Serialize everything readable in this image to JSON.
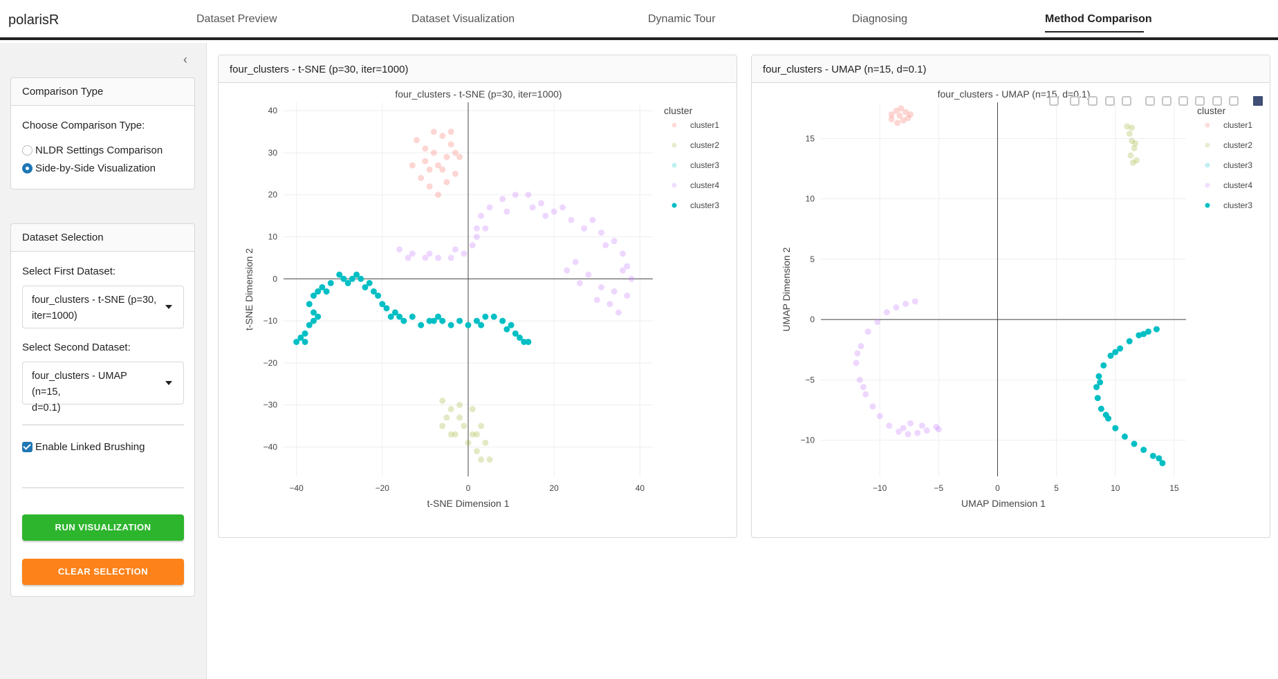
{
  "app": {
    "title": "polarisR"
  },
  "nav": {
    "tabs": [
      "Dataset Preview",
      "Dataset Visualization",
      "Dynamic Tour",
      "Diagnosing",
      "Method Comparison"
    ],
    "active": "Method Comparison"
  },
  "sidebar": {
    "comparison_card": {
      "title": "Comparison Type",
      "label": "Choose Comparison Type:",
      "options": [
        "NLDR Settings Comparison",
        "Side-by-Side Visualization"
      ],
      "selected": "Side-by-Side Visualization"
    },
    "dataset_card": {
      "title": "Dataset Selection",
      "first_label": "Select First Dataset:",
      "first_value_line1": "four_clusters - t-SNE (p=30,",
      "first_value_line2": "iter=1000)",
      "second_label": "Select Second Dataset:",
      "second_value_line1": "four_clusters - UMAP (n=15,",
      "second_value_line2": "d=0.1)",
      "linked_brushing_label": "Enable Linked Brushing",
      "linked_brushing_checked": true,
      "run_label": "RUN VISUALIZATION",
      "clear_label": "CLEAR SELECTION"
    }
  },
  "colors": {
    "cluster1": "#f8766d",
    "cluster2": "#a3b53a",
    "cluster3_faded": "#39c58c",
    "cluster4": "#c77cff",
    "cluster3": "#00bfc4",
    "run_button": "#2db52d",
    "clear_button": "#fd8219"
  },
  "chart_data": [
    {
      "type": "scatter",
      "panel_header": "four_clusters - t-SNE (p=30, iter=1000)",
      "title": "four_clusters - t-SNE (p=30, iter=1000)",
      "xlabel": "t-SNE Dimension 1",
      "ylabel": "t-SNE Dimension 2",
      "xlim": [
        -43,
        43
      ],
      "ylim": [
        -47,
        42
      ],
      "xticks": [
        -40,
        -20,
        0,
        20,
        40
      ],
      "yticks": [
        -40,
        -30,
        -20,
        -10,
        0,
        10,
        20,
        30,
        40
      ],
      "legend_title": "cluster",
      "legend": [
        "cluster1",
        "cluster2",
        "cluster3",
        "cluster4",
        "cluster3"
      ],
      "legend_opacity": [
        0.25,
        0.25,
        0.25,
        0.25,
        1
      ],
      "series": [
        {
          "name": "cluster1",
          "opacity": 0.3,
          "points": [
            [
              -12,
              33
            ],
            [
              -10,
              28
            ],
            [
              -8,
              30
            ],
            [
              -6,
              26
            ],
            [
              -4,
              32
            ],
            [
              -2,
              29
            ],
            [
              -11,
              24
            ],
            [
              -9,
              22
            ],
            [
              -7,
              27
            ],
            [
              -5,
              23
            ],
            [
              -3,
              25
            ],
            [
              -6,
              34
            ],
            [
              -8,
              35
            ],
            [
              -4,
              35
            ],
            [
              -13,
              27
            ],
            [
              -10,
              31
            ],
            [
              -7,
              20
            ],
            [
              -5,
              29
            ],
            [
              -3,
              30
            ],
            [
              -9,
              26
            ]
          ]
        },
        {
          "name": "cluster2",
          "opacity": 0.3,
          "points": [
            [
              -6,
              -29
            ],
            [
              -4,
              -31
            ],
            [
              -2,
              -33
            ],
            [
              -6,
              -35
            ],
            [
              -3,
              -37
            ],
            [
              -1,
              -35
            ],
            [
              0,
              -39
            ],
            [
              1,
              -37
            ],
            [
              2,
              -41
            ],
            [
              3,
              -43
            ],
            [
              4,
              -39
            ],
            [
              5,
              -43
            ],
            [
              -5,
              -33
            ],
            [
              -2,
              -30
            ],
            [
              1,
              -31
            ],
            [
              3,
              -35
            ],
            [
              -4,
              -37
            ],
            [
              2,
              -37
            ]
          ]
        },
        {
          "name": "cluster4",
          "opacity": 0.3,
          "points": [
            [
              -16,
              7
            ],
            [
              -13,
              6
            ],
            [
              -10,
              5
            ],
            [
              -7,
              5
            ],
            [
              -4,
              5
            ],
            [
              -1,
              6
            ],
            [
              1,
              8
            ],
            [
              2,
              12
            ],
            [
              3,
              15
            ],
            [
              5,
              17
            ],
            [
              8,
              19
            ],
            [
              11,
              20
            ],
            [
              14,
              20
            ],
            [
              17,
              18
            ],
            [
              20,
              16
            ],
            [
              24,
              14
            ],
            [
              27,
              12
            ],
            [
              31,
              11
            ],
            [
              34,
              9
            ],
            [
              36,
              6
            ],
            [
              37,
              3
            ],
            [
              38,
              0
            ],
            [
              37,
              -4
            ],
            [
              35,
              -8
            ],
            [
              33,
              -6
            ],
            [
              31,
              -2
            ],
            [
              28,
              1
            ],
            [
              25,
              4
            ],
            [
              23,
              2
            ],
            [
              26,
              -1
            ],
            [
              30,
              -5
            ],
            [
              34,
              -3
            ],
            [
              36,
              2
            ],
            [
              32,
              8
            ],
            [
              29,
              14
            ],
            [
              22,
              17
            ],
            [
              18,
              15
            ],
            [
              15,
              17
            ],
            [
              9,
              16
            ],
            [
              4,
              12
            ],
            [
              2,
              10
            ],
            [
              -3,
              7
            ],
            [
              -9,
              6
            ],
            [
              -14,
              5
            ]
          ]
        },
        {
          "name": "cluster3",
          "opacity": 1.0,
          "points": [
            [
              -40,
              -15
            ],
            [
              -39,
              -14
            ],
            [
              -38,
              -13
            ],
            [
              -37,
              -11
            ],
            [
              -36,
              -10
            ],
            [
              -36,
              -8
            ],
            [
              -37,
              -6
            ],
            [
              -36,
              -4
            ],
            [
              -35,
              -3
            ],
            [
              -34,
              -2
            ],
            [
              -32,
              -1
            ],
            [
              -30,
              1
            ],
            [
              -29,
              0
            ],
            [
              -28,
              -1
            ],
            [
              -27,
              0
            ],
            [
              -26,
              1
            ],
            [
              -25,
              0
            ],
            [
              -24,
              -2
            ],
            [
              -22,
              -3
            ],
            [
              -21,
              -4
            ],
            [
              -20,
              -6
            ],
            [
              -19,
              -7
            ],
            [
              -18,
              -9
            ],
            [
              -16,
              -9
            ],
            [
              -15,
              -10
            ],
            [
              -13,
              -9
            ],
            [
              -11,
              -11
            ],
            [
              -9,
              -10
            ],
            [
              -7,
              -9
            ],
            [
              -6,
              -10
            ],
            [
              -4,
              -11
            ],
            [
              -2,
              -10
            ],
            [
              0,
              -11
            ],
            [
              2,
              -10
            ],
            [
              4,
              -9
            ],
            [
              6,
              -9
            ],
            [
              8,
              -10
            ],
            [
              10,
              -11
            ],
            [
              11,
              -13
            ],
            [
              12,
              -14
            ],
            [
              13,
              -15
            ],
            [
              14,
              -15
            ],
            [
              -38,
              -15
            ],
            [
              -35,
              -9
            ],
            [
              -33,
              -3
            ],
            [
              -23,
              -1
            ],
            [
              -17,
              -8
            ],
            [
              -8,
              -10
            ],
            [
              3,
              -11
            ],
            [
              9,
              -12
            ]
          ]
        }
      ]
    },
    {
      "type": "scatter",
      "panel_header": "four_clusters - UMAP (n=15, d=0.1)",
      "title": "four_clusters - UMAP (n=15, d=0.1)",
      "xlabel": "UMAP Dimension 1",
      "ylabel": "UMAP Dimension 2",
      "xlim": [
        -15,
        16
      ],
      "ylim": [
        -13,
        18
      ],
      "xticks": [
        -10,
        -5,
        0,
        5,
        10,
        15
      ],
      "yticks": [
        -10,
        -5,
        0,
        5,
        10,
        15
      ],
      "legend_title": "cluster",
      "legend": [
        "cluster1",
        "cluster2",
        "cluster3",
        "cluster4",
        "cluster3"
      ],
      "legend_opacity": [
        0.25,
        0.25,
        0.25,
        0.25,
        1
      ],
      "series": [
        {
          "name": "cluster1",
          "opacity": 0.3,
          "points": [
            [
              -9,
              17
            ],
            [
              -8.6,
              17.3
            ],
            [
              -8.2,
              17.5
            ],
            [
              -7.8,
              17.2
            ],
            [
              -7.4,
              17
            ],
            [
              -9,
              16.6
            ],
            [
              -8.5,
              16.3
            ],
            [
              -8,
              16.5
            ],
            [
              -7.6,
              16.7
            ],
            [
              -8.3,
              16.9
            ]
          ]
        },
        {
          "name": "cluster2",
          "opacity": 0.3,
          "points": [
            [
              11,
              16
            ],
            [
              11.2,
              15.4
            ],
            [
              11.4,
              14.8
            ],
            [
              11.6,
              14.2
            ],
            [
              11.3,
              13.6
            ],
            [
              11.5,
              13
            ],
            [
              11.8,
              13.2
            ],
            [
              11.4,
              15.9
            ],
            [
              11.7,
              14.6
            ]
          ]
        },
        {
          "name": "cluster4",
          "opacity": 0.3,
          "points": [
            [
              -7,
              1.5
            ],
            [
              -7.8,
              1.3
            ],
            [
              -8.6,
              1
            ],
            [
              -9.4,
              0.6
            ],
            [
              -10.2,
              -0.2
            ],
            [
              -11,
              -1
            ],
            [
              -11.6,
              -2.2
            ],
            [
              -12,
              -3.6
            ],
            [
              -11.7,
              -5
            ],
            [
              -11.2,
              -6.2
            ],
            [
              -10.6,
              -7.2
            ],
            [
              -10,
              -8
            ],
            [
              -9.2,
              -8.8
            ],
            [
              -8.4,
              -9.3
            ],
            [
              -7.6,
              -9.5
            ],
            [
              -6.8,
              -9.4
            ],
            [
              -6,
              -9.2
            ],
            [
              -5.2,
              -8.9
            ],
            [
              -5,
              -9.1
            ],
            [
              -6.4,
              -8.8
            ],
            [
              -7.4,
              -8.6
            ],
            [
              -8,
              -9
            ],
            [
              -11.9,
              -2.8
            ],
            [
              -11.4,
              -5.6
            ]
          ]
        },
        {
          "name": "cluster3",
          "opacity": 1.0,
          "points": [
            [
              13.5,
              -0.8
            ],
            [
              12.8,
              -1
            ],
            [
              12,
              -1.3
            ],
            [
              11.2,
              -1.8
            ],
            [
              10.4,
              -2.4
            ],
            [
              9.6,
              -3
            ],
            [
              9,
              -3.8
            ],
            [
              8.6,
              -4.7
            ],
            [
              8.4,
              -5.6
            ],
            [
              8.5,
              -6.5
            ],
            [
              8.8,
              -7.4
            ],
            [
              9.4,
              -8.2
            ],
            [
              10,
              -9
            ],
            [
              10.8,
              -9.7
            ],
            [
              11.6,
              -10.3
            ],
            [
              12.4,
              -10.8
            ],
            [
              13.2,
              -11.3
            ],
            [
              14,
              -11.9
            ],
            [
              13.7,
              -11.5
            ],
            [
              9.2,
              -7.9
            ],
            [
              8.7,
              -5.2
            ],
            [
              10,
              -2.7
            ],
            [
              12.4,
              -1.2
            ]
          ]
        }
      ]
    }
  ]
}
